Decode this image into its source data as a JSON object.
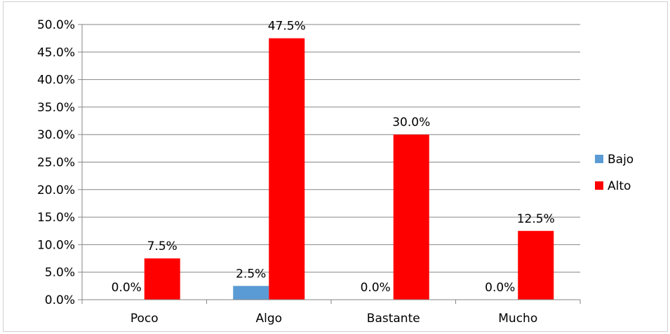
{
  "chart_data": {
    "type": "bar",
    "categories": [
      "Poco",
      "Algo",
      "Bastante",
      "Mucho"
    ],
    "series": [
      {
        "name": "Bajo",
        "values": [
          0.0,
          2.5,
          0.0,
          0.0
        ],
        "color": "#5b9bd5"
      },
      {
        "name": "Alto",
        "values": [
          7.5,
          47.5,
          30.0,
          12.5
        ],
        "color": "#ff0000"
      }
    ],
    "data_labels": {
      "Bajo": [
        "0.0%",
        "2.5%",
        "0.0%",
        "0.0%"
      ],
      "Alto": [
        "7.5%",
        "47.5%",
        "30.0%",
        "12.5%"
      ]
    },
    "y_ticks": [
      "0.0%",
      "5.0%",
      "10.0%",
      "15.0%",
      "20.0%",
      "25.0%",
      "30.0%",
      "35.0%",
      "40.0%",
      "45.0%",
      "50.0%"
    ],
    "ylim": [
      0,
      50
    ],
    "y_unit": "%",
    "grid": true,
    "legend_position": "right",
    "title": "",
    "xlabel": "",
    "ylabel": ""
  }
}
